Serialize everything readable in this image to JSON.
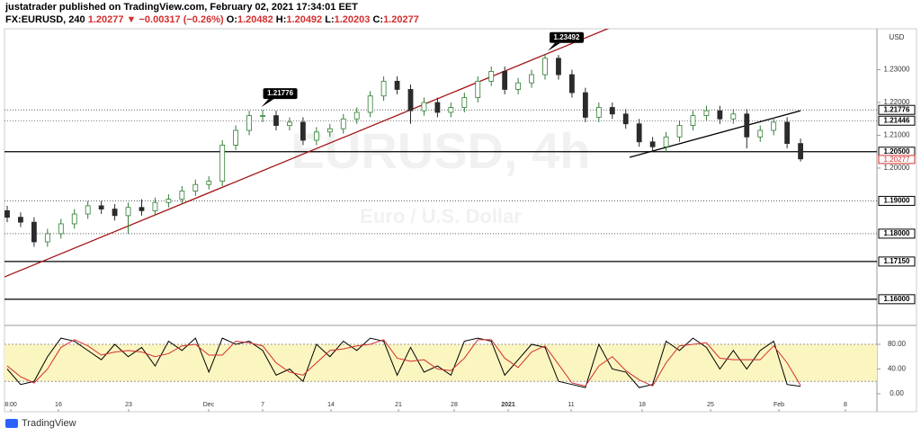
{
  "header": {
    "published": "justatrader published on TradingView.com, February 02, 2021 17:34:01 EET",
    "symbol": "FX:EURUSD, 240",
    "price": "1.20277",
    "change": "▼ −0.00317 (−0.26%)",
    "ohlc": [
      {
        "key": "O:",
        "value": "1.20482"
      },
      {
        "key": "H:",
        "value": "1.20492"
      },
      {
        "key": "L:",
        "value": "1.20203"
      },
      {
        "key": "C:",
        "value": "1.20277"
      }
    ]
  },
  "footer": {
    "brand": "TradingView"
  },
  "chart_data": [
    {
      "type": "candlestick",
      "currency": "USD",
      "watermark": [
        "EURUSD, 4h",
        "Euro / U.S. Dollar"
      ],
      "up_color": "#2e7d32",
      "down_color": "#2b2b2b",
      "open": [
        1.187,
        1.185,
        1.1835,
        1.1775,
        1.18,
        1.183,
        1.186,
        1.1885,
        1.1875,
        1.1855,
        1.188,
        1.187,
        1.1895,
        1.1905,
        1.193,
        1.195,
        1.196,
        1.207,
        1.2115,
        1.216,
        1.216,
        1.213,
        1.214,
        1.2085,
        1.211,
        1.212,
        1.215,
        1.217,
        1.222,
        1.2265,
        1.224,
        1.2175,
        1.22,
        1.217,
        1.2185,
        1.2215,
        1.2265,
        1.2295,
        1.224,
        1.226,
        1.2285,
        1.2335,
        1.2285,
        1.223,
        1.2155,
        1.2185,
        1.2165,
        1.2135,
        1.208,
        1.2065,
        1.2095,
        1.213,
        1.216,
        1.2175,
        1.215,
        1.2165,
        1.2095,
        1.2115,
        1.214,
        1.2075
      ],
      "high": [
        1.1885,
        1.1865,
        1.185,
        1.1815,
        1.1845,
        1.1875,
        1.19,
        1.19,
        1.189,
        1.1895,
        1.1905,
        1.191,
        1.192,
        1.1945,
        1.1965,
        1.1975,
        1.2085,
        1.213,
        1.2175,
        1.2178,
        1.2175,
        1.2155,
        1.2155,
        1.2125,
        1.2135,
        1.2165,
        1.2185,
        1.2235,
        1.228,
        1.228,
        1.2255,
        1.2215,
        1.2215,
        1.22,
        1.223,
        1.228,
        1.231,
        1.231,
        1.2275,
        1.23,
        1.2349,
        1.2345,
        1.23,
        1.2245,
        1.22,
        1.22,
        1.218,
        1.215,
        1.2095,
        1.211,
        1.2145,
        1.2175,
        1.219,
        1.219,
        1.218,
        1.218,
        1.213,
        1.2155,
        1.2155,
        1.209
      ],
      "low": [
        1.1835,
        1.182,
        1.176,
        1.176,
        1.1785,
        1.1815,
        1.1845,
        1.186,
        1.184,
        1.18,
        1.1855,
        1.1855,
        1.188,
        1.189,
        1.1915,
        1.1935,
        1.1945,
        1.2055,
        1.21,
        1.214,
        1.2115,
        1.2115,
        1.207,
        1.207,
        1.2095,
        1.2105,
        1.2135,
        1.2155,
        1.2205,
        1.2225,
        1.2135,
        1.216,
        1.2155,
        1.2155,
        1.217,
        1.22,
        1.225,
        1.2225,
        1.2225,
        1.2245,
        1.227,
        1.227,
        1.2215,
        1.214,
        1.214,
        1.215,
        1.212,
        1.2065,
        1.205,
        1.205,
        1.208,
        1.2115,
        1.2145,
        1.2135,
        1.2135,
        1.206,
        1.208,
        1.21,
        1.206,
        1.202
      ],
      "close": [
        1.185,
        1.1835,
        1.1775,
        1.18,
        1.183,
        1.186,
        1.1885,
        1.1875,
        1.1855,
        1.188,
        1.187,
        1.1895,
        1.1905,
        1.193,
        1.195,
        1.196,
        1.207,
        1.2115,
        1.216,
        1.216,
        1.213,
        1.214,
        1.2085,
        1.211,
        1.212,
        1.215,
        1.217,
        1.222,
        1.2265,
        1.224,
        1.2175,
        1.22,
        1.217,
        1.2185,
        1.2215,
        1.2265,
        1.2295,
        1.224,
        1.226,
        1.2285,
        1.2335,
        1.2285,
        1.223,
        1.2155,
        1.2185,
        1.2165,
        1.2135,
        1.208,
        1.2065,
        1.2095,
        1.213,
        1.216,
        1.2175,
        1.215,
        1.2165,
        1.2095,
        1.2115,
        1.214,
        1.2075,
        1.2028
      ],
      "xlim": [
        -0.2,
        64.68
      ],
      "ylim": [
        1.1531,
        1.2425
      ],
      "yticks": [
        {
          "value": 1.23,
          "label": "1.23000"
        },
        {
          "value": 1.22,
          "label": "1.22000"
        },
        {
          "value": 1.21,
          "label": "1.21000"
        },
        {
          "value": 1.2,
          "label": "1.20000"
        }
      ],
      "xticks": [
        {
          "value": 0.27,
          "label": "8:00"
        },
        {
          "value": 3.81,
          "label": "16"
        },
        {
          "value": 9.03,
          "label": "23"
        },
        {
          "value": 14.98,
          "label": "Dec"
        },
        {
          "value": 19.0,
          "label": "7"
        },
        {
          "value": 24.08,
          "label": "14"
        },
        {
          "value": 29.1,
          "label": "21"
        },
        {
          "value": 33.24,
          "label": "28"
        },
        {
          "value": 37.26,
          "label": "2021"
        },
        {
          "value": 41.94,
          "label": "11"
        },
        {
          "value": 47.22,
          "label": "18"
        },
        {
          "value": 52.31,
          "label": "25"
        },
        {
          "value": 57.39,
          "label": "Feb"
        },
        {
          "value": 62.34,
          "label": "8"
        }
      ],
      "price_lines": [
        {
          "value": 1.21776,
          "label": "1.21776",
          "style": "dotted"
        },
        {
          "value": 1.21446,
          "label": "1.21446",
          "style": "dotted"
        },
        {
          "value": 1.205,
          "label": "1.20500",
          "style": "solid"
        },
        {
          "value": 1.19,
          "label": "1.19000",
          "style": "dotted"
        },
        {
          "value": 1.18,
          "label": "1.18000",
          "style": "dotted"
        },
        {
          "value": 1.1715,
          "label": "1.17150",
          "style": "solid"
        },
        {
          "value": 1.16,
          "label": "1.16000",
          "style": "solid"
        }
      ],
      "last_price": {
        "value": 1.20277,
        "label": "1.20277"
      },
      "trend_lines": [
        {
          "color": "#a31515",
          "x": [
            -0.2,
            44.95
          ],
          "y": [
            1.1668,
            1.243
          ]
        },
        {
          "color": "#000000",
          "x": [
            46.29,
            59.0
          ],
          "y": [
            1.2033,
            1.2175
          ]
        }
      ],
      "annotations": [
        {
          "text": "1.21776",
          "x": 18.9,
          "y": 1.2178
        },
        {
          "text": "1.23492",
          "x": 40.2,
          "y": 1.2349
        }
      ]
    },
    {
      "type": "line",
      "band": [
        20,
        80
      ],
      "band_color": "#fbf5c0",
      "xlim": [
        -0.2,
        64.68
      ],
      "ylim": [
        -24.7,
        104.7
      ],
      "yticks": [
        {
          "value": 80,
          "label": "80.00"
        },
        {
          "value": 40,
          "label": "40.00"
        },
        {
          "value": 0,
          "label": "0.00"
        }
      ],
      "series": [
        {
          "color": "#000000",
          "values": [
            40,
            15,
            20,
            60,
            90,
            85,
            70,
            55,
            80,
            60,
            75,
            45,
            85,
            70,
            90,
            35,
            90,
            80,
            85,
            70,
            30,
            40,
            20,
            80,
            60,
            85,
            70,
            90,
            85,
            30,
            75,
            35,
            45,
            30,
            85,
            90,
            85,
            30,
            55,
            80,
            75,
            20,
            15,
            10,
            80,
            40,
            35,
            10,
            15,
            85,
            70,
            90,
            75,
            40,
            70,
            40,
            70,
            85,
            15,
            12
          ]
        },
        {
          "color": "#d32f2f",
          "values": [
            45,
            27.5,
            17.5,
            40,
            75,
            87.5,
            77.5,
            62.5,
            67.5,
            70,
            67.5,
            60,
            65,
            77.5,
            80,
            62.5,
            62.5,
            85,
            82.5,
            77.5,
            50,
            35,
            30,
            50,
            70,
            72.5,
            77.5,
            80,
            87.5,
            57.5,
            52.5,
            55,
            40,
            37.5,
            57.5,
            87.5,
            87.5,
            57.5,
            42.5,
            67.5,
            77.5,
            47.5,
            17.5,
            12.5,
            45,
            60,
            37.5,
            22.5,
            12.5,
            50,
            77.5,
            80,
            82.5,
            57.5,
            55,
            55,
            55,
            77.5,
            50,
            13.5
          ]
        }
      ]
    }
  ]
}
